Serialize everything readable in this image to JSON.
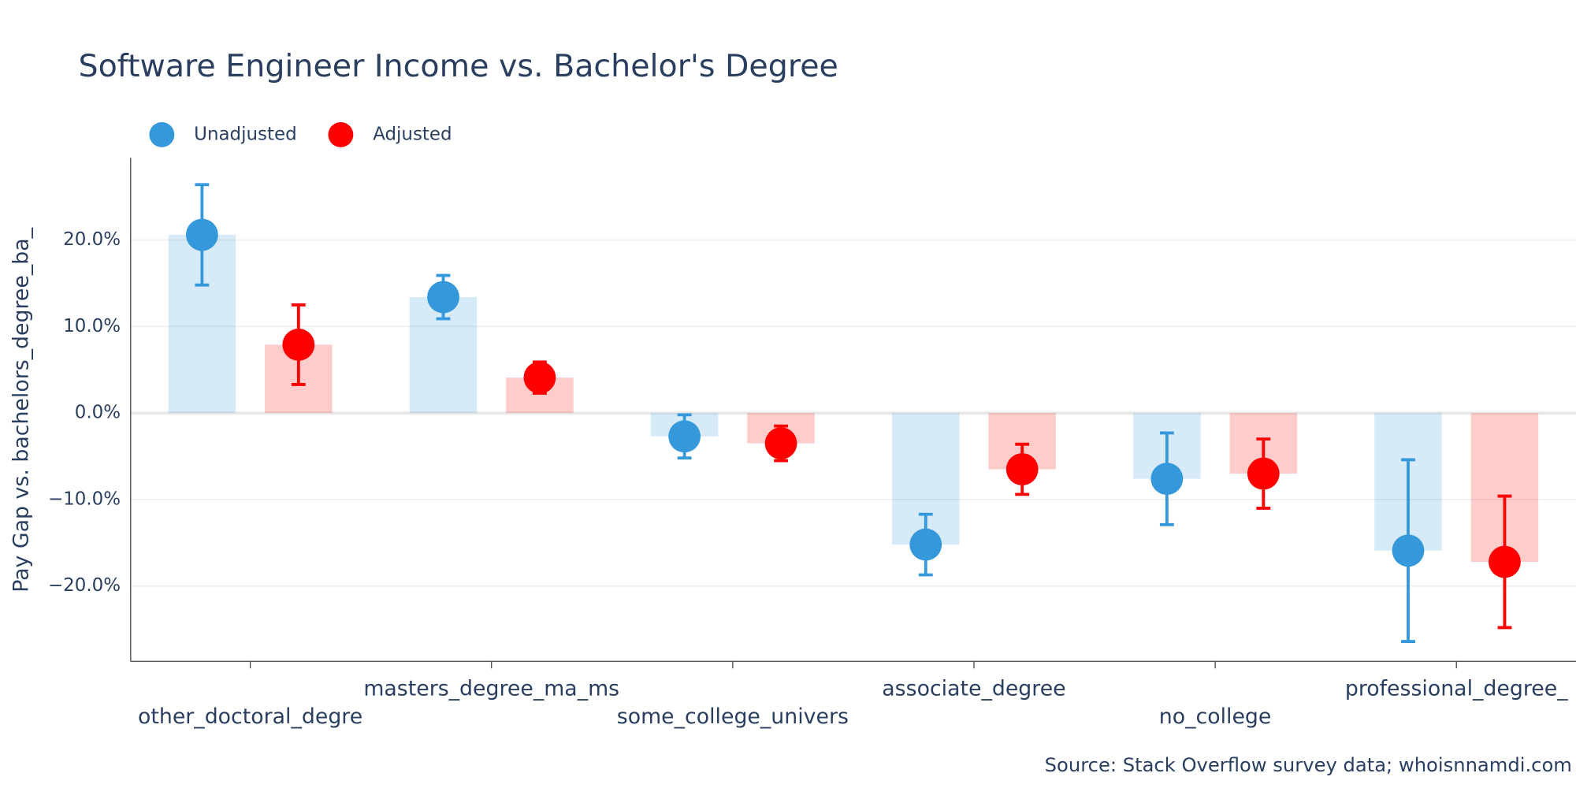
{
  "chart_data": {
    "type": "bar_errorbar",
    "title": "Software Engineer Income vs. Bachelor's Degree",
    "y_label": "Pay Gap vs. bachelors_degree_ba_",
    "source": "Source: Stack Overflow survey data; whoisnnamdi.com",
    "categories": [
      "other_doctoral_degre",
      "masters_degree_ma_ms",
      "some_college_univers",
      "associate_degree",
      "no_college",
      "professional_degree_"
    ],
    "series": [
      {
        "name": "Unadjusted",
        "color": "#3498db",
        "values": [
          20.6,
          13.4,
          -2.7,
          -15.2,
          -7.6,
          -15.9
        ],
        "errors": [
          5.8,
          2.5,
          2.5,
          3.5,
          5.3,
          10.5
        ]
      },
      {
        "name": "Adjusted",
        "color": "#ff0000",
        "values": [
          7.9,
          4.1,
          -3.5,
          -6.5,
          -7.0,
          -17.2
        ],
        "errors": [
          4.6,
          1.8,
          2.0,
          2.9,
          4.0,
          7.6
        ]
      }
    ],
    "ylim": [
      -28.7,
      29.5
    ],
    "yticks": [
      {
        "value": -20,
        "label": "−20.0%"
      },
      {
        "value": -10,
        "label": "−10.0%"
      },
      {
        "value": 0,
        "label": "0.0%"
      },
      {
        "value": 10,
        "label": "10.0%"
      },
      {
        "value": 20,
        "label": "20.0%"
      }
    ],
    "grid": true,
    "legend": "top-left"
  }
}
